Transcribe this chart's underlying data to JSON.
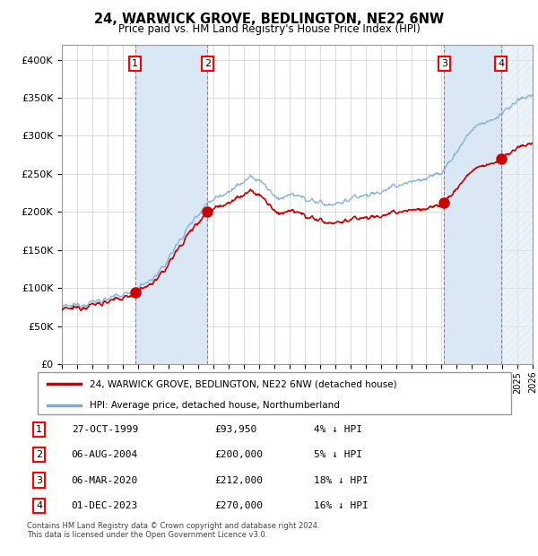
{
  "title": "24, WARWICK GROVE, BEDLINGTON, NE22 6NW",
  "subtitle": "Price paid vs. HM Land Registry's House Price Index (HPI)",
  "xlim": [
    1995,
    2026
  ],
  "ylim": [
    0,
    420000
  ],
  "yticks": [
    0,
    50000,
    100000,
    150000,
    200000,
    250000,
    300000,
    350000,
    400000
  ],
  "xticks": [
    1995,
    1996,
    1997,
    1998,
    1999,
    2000,
    2001,
    2002,
    2003,
    2004,
    2005,
    2006,
    2007,
    2008,
    2009,
    2010,
    2011,
    2012,
    2013,
    2014,
    2015,
    2016,
    2017,
    2018,
    2019,
    2020,
    2021,
    2022,
    2023,
    2024,
    2025,
    2026
  ],
  "sale_dates": [
    1999.82,
    2004.59,
    2020.17,
    2023.92
  ],
  "sale_prices": [
    93950,
    200000,
    212000,
    270000
  ],
  "sale_labels": [
    "1",
    "2",
    "3",
    "4"
  ],
  "legend_property": "24, WARWICK GROVE, BEDLINGTON, NE22 6NW (detached house)",
  "legend_hpi": "HPI: Average price, detached house, Northumberland",
  "property_color": "#cc0000",
  "hpi_color": "#7aaddb",
  "table_entries": [
    {
      "num": "1",
      "date": "27-OCT-1999",
      "price": "£93,950",
      "pct": "4% ↓ HPI"
    },
    {
      "num": "2",
      "date": "06-AUG-2004",
      "price": "£200,000",
      "pct": "5% ↓ HPI"
    },
    {
      "num": "3",
      "date": "06-MAR-2020",
      "price": "£212,000",
      "pct": "18% ↓ HPI"
    },
    {
      "num": "4",
      "date": "01-DEC-2023",
      "price": "£270,000",
      "pct": "16% ↓ HPI"
    }
  ],
  "footnote": "Contains HM Land Registry data © Crown copyright and database right 2024.\nThis data is licensed under the Open Government Licence v3.0.",
  "background_color": "#ffffff",
  "grid_color": "#cccccc",
  "shade_color": "#dae8f5",
  "hatch_color": "#cccccc",
  "vline_color": "#dd4444"
}
